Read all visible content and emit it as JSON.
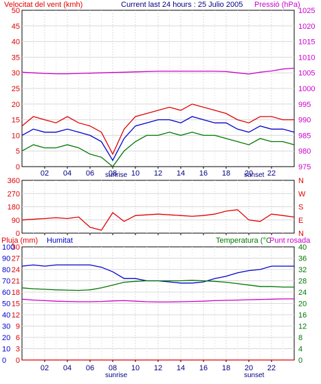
{
  "header": {
    "left_title": "Velocitat del vent (kmh)",
    "center_title": "Current last 24 hours : 25 Julio 2005",
    "right_title": "Pressió (hPa)"
  },
  "labels": {
    "sunrise": "sunrise",
    "sunset": "sunset"
  },
  "colors": {
    "red": "#e00000",
    "blue": "#0000cc",
    "green": "#007700",
    "magenta": "#cc00cc",
    "border": "#000000",
    "grid": "#d8d8d8",
    "background": "#ffffff"
  },
  "x_axis": {
    "range": [
      0,
      24
    ],
    "tick_labels": [
      "02",
      "04",
      "06",
      "08",
      "10",
      "12",
      "14",
      "16",
      "18",
      "20",
      "22"
    ],
    "tick_values": [
      2,
      4,
      6,
      8,
      10,
      12,
      14,
      16,
      18,
      20,
      22
    ],
    "sunrise_hour": 8,
    "sunset_hour": 20.3
  },
  "chart_data": [
    {
      "type": "line",
      "title": "Velocitat del vent (kmh) / Pressió (hPa)",
      "y_left": {
        "label": "Velocitat del vent (kmh)",
        "range": [
          0,
          50
        ],
        "ticks": [
          "0",
          "5",
          "10",
          "15",
          "20",
          "25",
          "30",
          "35",
          "40",
          "45",
          "50"
        ]
      },
      "y_right": {
        "label": "Pressió (hPa)",
        "range": [
          975,
          1025
        ],
        "ticks": [
          "975",
          "980",
          "985",
          "990",
          "995",
          "1000",
          "1005",
          "1010",
          "1015",
          "1020",
          "1025"
        ]
      },
      "x_hours": [
        0,
        1,
        2,
        3,
        4,
        5,
        6,
        7,
        8,
        9,
        10,
        11,
        12,
        13,
        14,
        15,
        16,
        17,
        18,
        19,
        20,
        21,
        22,
        23,
        24
      ],
      "series": [
        {
          "name": "gust",
          "color": "#e00000",
          "axis": "left",
          "values": [
            13,
            16,
            15,
            14,
            16,
            14,
            13,
            11,
            4,
            12,
            16,
            17,
            18,
            19,
            18,
            20,
            19,
            18,
            17,
            15,
            14,
            16,
            16,
            15,
            15
          ]
        },
        {
          "name": "average",
          "color": "#0000cc",
          "axis": "left",
          "values": [
            10,
            12,
            11,
            11,
            12,
            11,
            10,
            8,
            2,
            9,
            13,
            14,
            15,
            15,
            14,
            16,
            15,
            14,
            14,
            12,
            11,
            13,
            12,
            12,
            11
          ]
        },
        {
          "name": "minimum",
          "color": "#007700",
          "axis": "left",
          "values": [
            5,
            7,
            6,
            6,
            7,
            6,
            4,
            3,
            0,
            5,
            8,
            10,
            10,
            11,
            10,
            11,
            10,
            10,
            9,
            8,
            7,
            9,
            8,
            8,
            7
          ]
        },
        {
          "name": "pressure",
          "color": "#cc00cc",
          "axis": "right",
          "values": [
            1005.2,
            1005.0,
            1004.8,
            1004.7,
            1004.7,
            1004.8,
            1004.9,
            1005.0,
            1005.1,
            1005.2,
            1005.3,
            1005.4,
            1005.5,
            1005.5,
            1005.5,
            1005.5,
            1005.5,
            1005.5,
            1005.4,
            1005.0,
            1004.6,
            1005.2,
            1005.6,
            1006.2,
            1006.5
          ]
        }
      ]
    },
    {
      "type": "line",
      "title": "",
      "y_left": {
        "label": "",
        "range": [
          0,
          360
        ],
        "ticks": [
          "0",
          "90",
          "180",
          "270",
          "360"
        ]
      },
      "y_right": {
        "label": "",
        "range": [
          0,
          360
        ],
        "ticks": [
          "N",
          "E",
          "S",
          "W",
          "N"
        ]
      },
      "x_hours": [
        0,
        1,
        2,
        3,
        4,
        5,
        6,
        7,
        8,
        9,
        10,
        11,
        12,
        13,
        14,
        15,
        16,
        17,
        18,
        19,
        20,
        21,
        22,
        23,
        24
      ],
      "series": [
        {
          "name": "wind direction",
          "color": "#e00000",
          "axis": "left",
          "values": [
            90,
            95,
            100,
            105,
            100,
            110,
            40,
            20,
            140,
            80,
            120,
            125,
            130,
            125,
            120,
            115,
            120,
            130,
            150,
            160,
            90,
            80,
            130,
            120,
            110
          ]
        }
      ]
    },
    {
      "type": "line",
      "title": "",
      "y_left": {
        "label": "Pluja (mm)",
        "range": [
          0,
          30
        ],
        "ticks": [
          "0",
          "3",
          "6",
          "9",
          "12",
          "15",
          "18",
          "21",
          "24",
          "27",
          "30"
        ]
      },
      "y_left2": {
        "label": "Humitat",
        "range": [
          0,
          100
        ],
        "ticks": [
          "0",
          "10",
          "20",
          "30",
          "40",
          "50",
          "60",
          "70",
          "80",
          "90",
          "100"
        ]
      },
      "y_right": {
        "label": "Temperatura (°C",
        "range": [
          0,
          40
        ],
        "ticks": [
          "0",
          "4",
          "8",
          "12",
          "16",
          "20",
          "24",
          "28",
          "32",
          "36",
          "40"
        ]
      },
      "y_right_label2": "Punt rosada",
      "x_hours": [
        0,
        1,
        2,
        3,
        4,
        5,
        6,
        7,
        8,
        9,
        10,
        11,
        12,
        13,
        14,
        15,
        16,
        17,
        18,
        19,
        20,
        21,
        22,
        23,
        24
      ],
      "series": [
        {
          "name": "rain",
          "color": "#e00000",
          "axis": "left",
          "values": [
            0,
            0,
            0,
            0,
            0,
            0,
            0,
            0,
            0,
            0,
            0,
            0,
            0,
            0,
            0,
            0,
            0,
            0,
            0,
            0,
            0,
            0,
            0,
            0,
            0
          ]
        },
        {
          "name": "humidity",
          "color": "#0000cc",
          "axis": "left2",
          "values": [
            83,
            84,
            83,
            84,
            84,
            84,
            84,
            82,
            78,
            72,
            72,
            70,
            70,
            69,
            68,
            68,
            69,
            72,
            74,
            77,
            79,
            80,
            83,
            83,
            83
          ]
        },
        {
          "name": "temperature",
          "color": "#007700",
          "axis": "right",
          "values": [
            25.5,
            25.2,
            25.0,
            24.8,
            24.7,
            24.6,
            24.8,
            25.5,
            26.5,
            27.5,
            27.8,
            28,
            28,
            28,
            28,
            28.2,
            28,
            27.8,
            27.5,
            27,
            26.5,
            26,
            26,
            25.8,
            25.8
          ]
        },
        {
          "name": "dew point",
          "color": "#cc00cc",
          "axis": "right",
          "values": [
            21.5,
            21.2,
            21.0,
            20.8,
            20.7,
            20.6,
            20.6,
            20.7,
            20.9,
            21.0,
            20.8,
            20.6,
            20.5,
            20.5,
            20.6,
            20.7,
            20.8,
            21.0,
            21.1,
            21.2,
            21.3,
            21.4,
            21.5,
            21.6,
            21.6
          ]
        }
      ]
    }
  ]
}
